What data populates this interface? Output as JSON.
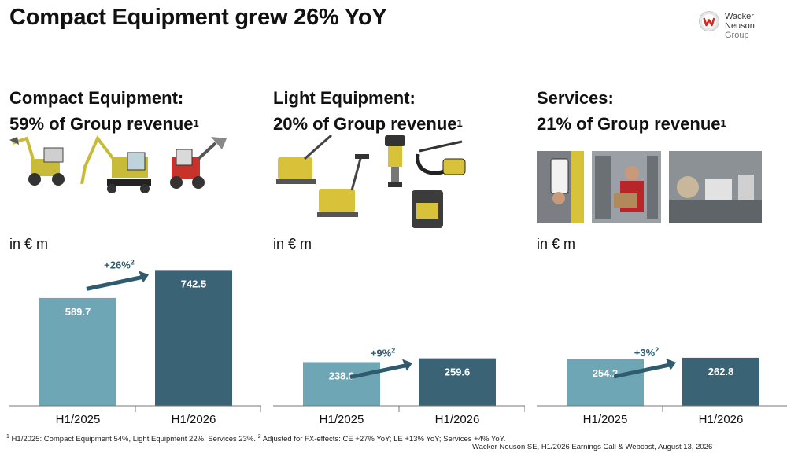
{
  "title": "Compact Equipment grew 26% YoY",
  "logo": {
    "line1": "Wacker Neuson",
    "line2": "Group"
  },
  "unit_label": "in € m",
  "colors": {
    "h1_2025": "#6fa6b6",
    "h1_2026": "#3a6476",
    "arrow": "#2f5b6e",
    "axis": "#777777"
  },
  "panels": [
    {
      "heading_line1": "Compact Equipment:",
      "heading_line2": "59% of Group revenue",
      "sup": "1"
    },
    {
      "heading_line1": "Light Equipment:",
      "heading_line2": "20% of Group revenue",
      "sup": "1"
    },
    {
      "heading_line1": "Services:",
      "heading_line2": "21% of Group revenue",
      "sup": "1"
    }
  ],
  "chart_data": [
    {
      "type": "bar",
      "categories": [
        "H1/2025",
        "H1/2026"
      ],
      "values": [
        589.7,
        742.5
      ],
      "value_labels": [
        "589.7",
        "742.5"
      ],
      "growth_label": "+26%",
      "growth_sup": "2",
      "ylim": [
        0,
        800
      ]
    },
    {
      "type": "bar",
      "categories": [
        "H1/2025",
        "H1/2026"
      ],
      "values": [
        238.9,
        259.6
      ],
      "value_labels": [
        "238.9",
        "259.6"
      ],
      "growth_label": "+9%",
      "growth_sup": "2",
      "ylim": [
        0,
        800
      ]
    },
    {
      "type": "bar",
      "categories": [
        "H1/2025",
        "H1/2026"
      ],
      "values": [
        254.2,
        262.8
      ],
      "value_labels": [
        "254.2",
        "262.8"
      ],
      "growth_label": "+3%",
      "growth_sup": "2",
      "ylim": [
        0,
        800
      ]
    }
  ],
  "footnote": {
    "sup1": "1",
    "text1": " H1/2025: Compact Equipment 54%, Light Equipment 22%, Services 23%. ",
    "sup2": "2",
    "text2": " Adjusted for FX-effects: CE +27% YoY; LE +13% YoY; Services +4% YoY."
  },
  "source": "Wacker Neuson SE, H1/2026 Earnings Call & Webcast, August 13, 2026"
}
